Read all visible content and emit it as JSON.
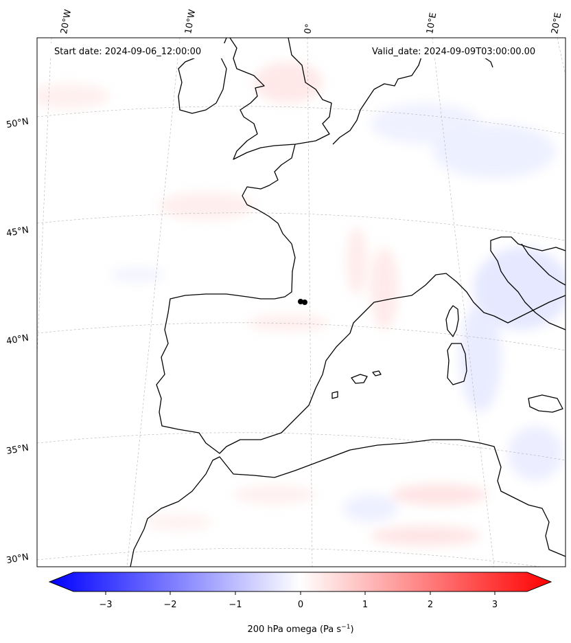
{
  "header": {
    "start_date": "Start date: 2024-09-06_12:00:00",
    "valid_date": "Valid_date: 2024-09-09T03:00:00.00"
  },
  "lon_labels": [
    "20°W",
    "10°W",
    "0°",
    "10°E",
    "20°E"
  ],
  "lat_labels": [
    "50°N",
    "45°N",
    "40°N",
    "35°N",
    "30°N"
  ],
  "colorbar": {
    "ticks": [
      "−3",
      "−2",
      "−1",
      "0",
      "1",
      "2",
      "3"
    ],
    "label": "200 hPa omega (Pa s",
    "label_sup": "−1",
    "label_end": ")",
    "colors": {
      "min": "#0000ff",
      "mid": "#ffffff",
      "max": "#ff0000"
    }
  },
  "map": {
    "coastline_color": "#000000",
    "gridline_color": "#b0b0b0",
    "marker_color": "#000000"
  }
}
